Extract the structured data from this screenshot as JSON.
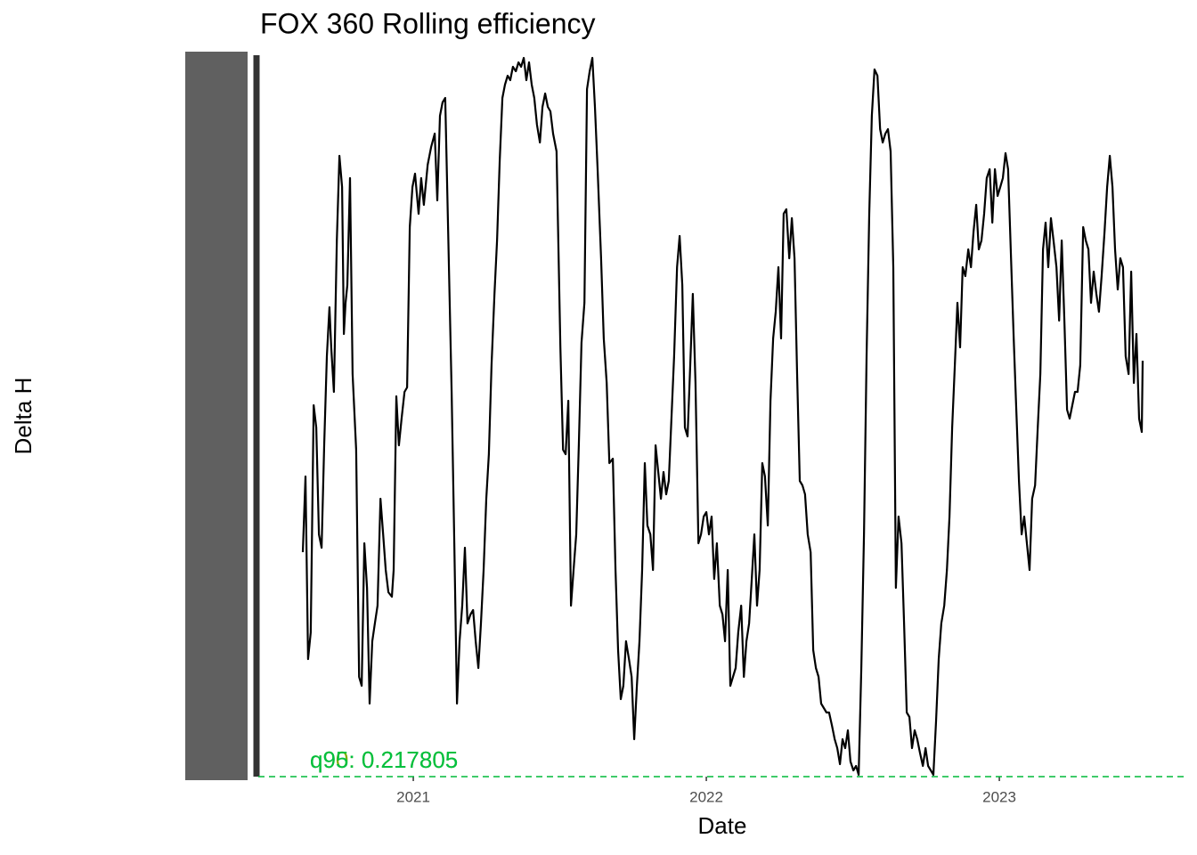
{
  "chart_data": {
    "type": "line",
    "title": "FOX 360 Rolling efficiency",
    "x_label": "Date",
    "y_label": "Delta H",
    "xlim": [
      2020.471,
      2023.632
    ],
    "xticks": [
      2021,
      2022,
      2023
    ],
    "ylim": [
      0,
      0.81
    ],
    "hline": {
      "value": 0,
      "color": "#00ba38"
    },
    "annotations": [
      {
        "text": "q90: 0.217805",
        "color": "#7cae00"
      },
      {
        "text": "q95: 0.217805",
        "color": "#00c040"
      }
    ],
    "series": [
      {
        "name": "Delta H",
        "color": "#000000",
        "x": [
          2020.623,
          2020.632,
          2020.641,
          2020.65,
          2020.66,
          2020.669,
          2020.678,
          2020.687,
          2020.696,
          2020.705,
          2020.714,
          2020.72,
          2020.729,
          2020.739,
          2020.748,
          2020.757,
          2020.763,
          2020.769,
          2020.775,
          2020.784,
          2020.793,
          2020.805,
          2020.815,
          2020.824,
          2020.833,
          2020.842,
          2020.851,
          2020.86,
          2020.869,
          2020.878,
          2020.888,
          2020.897,
          2020.906,
          2020.915,
          2020.927,
          2020.933,
          2020.942,
          2020.951,
          2020.96,
          2020.97,
          2020.979,
          2020.988,
          2020.997,
          2021.006,
          2021.018,
          2021.027,
          2021.036,
          2021.049,
          2021.061,
          2021.073,
          2021.082,
          2021.091,
          2021.1,
          2021.109,
          2021.119,
          2021.131,
          2021.14,
          2021.149,
          2021.158,
          2021.167,
          2021.176,
          2021.185,
          2021.195,
          2021.204,
          2021.213,
          2021.222,
          2021.231,
          2021.24,
          2021.249,
          2021.258,
          2021.267,
          2021.277,
          2021.286,
          2021.295,
          2021.304,
          2021.313,
          2021.322,
          2021.331,
          2021.34,
          2021.35,
          2021.359,
          2021.368,
          2021.377,
          2021.386,
          2021.395,
          2021.404,
          2021.413,
          2021.422,
          2021.432,
          2021.441,
          2021.45,
          2021.459,
          2021.468,
          2021.477,
          2021.489,
          2021.502,
          2021.511,
          2021.52,
          2021.529,
          2021.538,
          2021.547,
          2021.556,
          2021.565,
          2021.574,
          2021.584,
          2021.593,
          2021.602,
          2021.611,
          2021.62,
          2021.629,
          2021.641,
          2021.65,
          2021.66,
          2021.669,
          2021.681,
          2021.69,
          2021.699,
          2021.708,
          2021.717,
          2021.726,
          2021.736,
          2021.745,
          2021.754,
          2021.763,
          2021.772,
          2021.781,
          2021.79,
          2021.799,
          2021.809,
          2021.818,
          2021.827,
          2021.836,
          2021.845,
          2021.854,
          2021.863,
          2021.872,
          2021.881,
          2021.89,
          2021.9,
          2021.909,
          2021.918,
          2021.927,
          2021.936,
          2021.945,
          2021.954,
          2021.963,
          2021.973,
          2021.982,
          2021.991,
          2022.0,
          2022.009,
          2022.018,
          2022.027,
          2022.036,
          2022.046,
          2022.055,
          2022.064,
          2022.073,
          2022.082,
          2022.091,
          2022.1,
          2022.109,
          2022.119,
          2022.128,
          2022.137,
          2022.146,
          2022.155,
          2022.164,
          2022.173,
          2022.182,
          2022.191,
          2022.2,
          2022.21,
          2022.219,
          2022.228,
          2022.237,
          2022.246,
          2022.255,
          2022.264,
          2022.273,
          2022.283,
          2022.292,
          2022.301,
          2022.31,
          2022.319,
          2022.328,
          2022.337,
          2022.346,
          2022.356,
          2022.365,
          2022.374,
          2022.383,
          2022.392,
          2022.401,
          2022.41,
          2022.419,
          2022.429,
          2022.438,
          2022.447,
          2022.456,
          2022.465,
          2022.474,
          2022.483,
          2022.492,
          2022.502,
          2022.511,
          2022.52,
          2022.529,
          2022.538,
          2022.547,
          2022.556,
          2022.565,
          2022.574,
          2022.584,
          2022.593,
          2022.602,
          2022.611,
          2022.62,
          2022.629,
          2022.638,
          2022.647,
          2022.656,
          2022.666,
          2022.675,
          2022.684,
          2022.693,
          2022.702,
          2022.711,
          2022.72,
          2022.729,
          2022.739,
          2022.748,
          2022.757,
          2022.766,
          2022.775,
          2022.784,
          2022.793,
          2022.802,
          2022.812,
          2022.821,
          2022.83,
          2022.839,
          2022.848,
          2022.857,
          2022.866,
          2022.875,
          2022.884,
          2022.894,
          2022.903,
          2022.912,
          2022.921,
          2022.93,
          2022.939,
          2022.948,
          2022.957,
          2022.967,
          2022.976,
          2022.985,
          2022.994,
          2023.003,
          2023.012,
          2023.021,
          2023.03,
          2023.04,
          2023.049,
          2023.058,
          2023.067,
          2023.076,
          2023.085,
          2023.094,
          2023.103,
          2023.112,
          2023.122,
          2023.131,
          2023.14,
          2023.149,
          2023.158,
          2023.167,
          2023.176,
          2023.185,
          2023.195,
          2023.204,
          2023.213,
          2023.222,
          2023.231,
          2023.24,
          2023.249,
          2023.258,
          2023.267,
          2023.276,
          2023.286,
          2023.295,
          2023.304,
          2023.313,
          2023.322,
          2023.331,
          2023.34,
          2023.349,
          2023.359,
          2023.368,
          2023.377,
          2023.386,
          2023.395,
          2023.404,
          2023.413,
          2023.422,
          2023.431,
          2023.441,
          2023.45,
          2023.459,
          2023.468,
          2023.477,
          2023.486,
          2023.489
        ],
        "values": [
          0.252,
          0.337,
          0.132,
          0.162,
          0.417,
          0.392,
          0.272,
          0.257,
          0.372,
          0.472,
          0.527,
          0.482,
          0.432,
          0.602,
          0.697,
          0.662,
          0.497,
          0.532,
          0.552,
          0.672,
          0.452,
          0.367,
          0.112,
          0.102,
          0.262,
          0.212,
          0.082,
          0.152,
          0.172,
          0.192,
          0.312,
          0.272,
          0.232,
          0.207,
          0.202,
          0.232,
          0.427,
          0.372,
          0.402,
          0.432,
          0.437,
          0.617,
          0.662,
          0.677,
          0.632,
          0.672,
          0.642,
          0.687,
          0.707,
          0.722,
          0.647,
          0.742,
          0.757,
          0.762,
          0.612,
          0.432,
          0.262,
          0.082,
          0.152,
          0.192,
          0.257,
          0.172,
          0.182,
          0.187,
          0.152,
          0.122,
          0.172,
          0.232,
          0.312,
          0.362,
          0.462,
          0.542,
          0.602,
          0.692,
          0.762,
          0.777,
          0.787,
          0.782,
          0.797,
          0.792,
          0.802,
          0.797,
          0.807,
          0.782,
          0.802,
          0.777,
          0.762,
          0.732,
          0.712,
          0.752,
          0.767,
          0.752,
          0.747,
          0.722,
          0.702,
          0.482,
          0.367,
          0.362,
          0.422,
          0.192,
          0.232,
          0.272,
          0.372,
          0.487,
          0.532,
          0.772,
          0.792,
          0.807,
          0.752,
          0.682,
          0.582,
          0.492,
          0.442,
          0.352,
          0.357,
          0.232,
          0.142,
          0.087,
          0.102,
          0.152,
          0.132,
          0.112,
          0.042,
          0.102,
          0.152,
          0.232,
          0.352,
          0.282,
          0.272,
          0.232,
          0.372,
          0.342,
          0.312,
          0.342,
          0.317,
          0.332,
          0.402,
          0.472,
          0.572,
          0.607,
          0.552,
          0.392,
          0.382,
          0.462,
          0.542,
          0.442,
          0.262,
          0.272,
          0.292,
          0.297,
          0.272,
          0.292,
          0.222,
          0.262,
          0.192,
          0.182,
          0.152,
          0.232,
          0.102,
          0.112,
          0.122,
          0.162,
          0.192,
          0.112,
          0.152,
          0.172,
          0.222,
          0.272,
          0.192,
          0.232,
          0.352,
          0.337,
          0.282,
          0.422,
          0.492,
          0.522,
          0.572,
          0.492,
          0.632,
          0.637,
          0.582,
          0.627,
          0.582,
          0.452,
          0.332,
          0.327,
          0.317,
          0.272,
          0.252,
          0.142,
          0.122,
          0.112,
          0.082,
          0.077,
          0.072,
          0.072,
          0.057,
          0.042,
          0.032,
          0.014,
          0.042,
          0.032,
          0.052,
          0.017,
          0.007,
          0.012,
          0.002,
          0.122,
          0.272,
          0.472,
          0.632,
          0.742,
          0.794,
          0.787,
          0.727,
          0.712,
          0.722,
          0.727,
          0.702,
          0.572,
          0.212,
          0.292,
          0.262,
          0.172,
          0.072,
          0.067,
          0.032,
          0.052,
          0.042,
          0.027,
          0.012,
          0.032,
          0.012,
          0.007,
          0.002,
          0.062,
          0.132,
          0.172,
          0.192,
          0.232,
          0.292,
          0.392,
          0.462,
          0.532,
          0.482,
          0.572,
          0.562,
          0.592,
          0.572,
          0.612,
          0.642,
          0.592,
          0.602,
          0.632,
          0.672,
          0.682,
          0.622,
          0.682,
          0.652,
          0.662,
          0.672,
          0.7,
          0.682,
          0.582,
          0.492,
          0.412,
          0.332,
          0.272,
          0.292,
          0.262,
          0.232,
          0.312,
          0.327,
          0.392,
          0.452,
          0.592,
          0.622,
          0.572,
          0.627,
          0.602,
          0.572,
          0.512,
          0.602,
          0.512,
          0.412,
          0.402,
          0.417,
          0.432,
          0.432,
          0.462,
          0.617,
          0.602,
          0.592,
          0.532,
          0.567,
          0.542,
          0.522,
          0.562,
          0.612,
          0.662,
          0.697,
          0.662,
          0.592,
          0.547,
          0.582,
          0.572,
          0.472,
          0.452,
          0.567,
          0.442,
          0.497,
          0.402,
          0.387,
          0.467
        ]
      }
    ]
  }
}
